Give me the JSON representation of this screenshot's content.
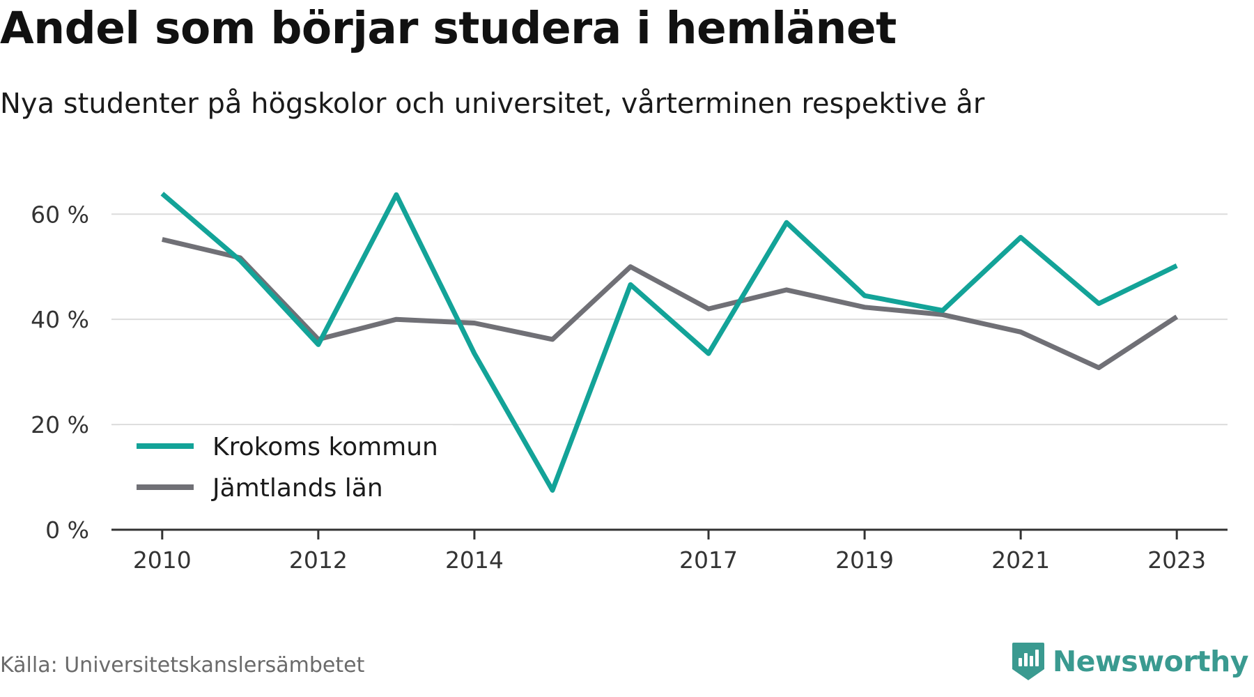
{
  "header": {
    "title": "Andel som börjar studera i hemlänet",
    "subtitle": "Nya studenter på högskolor och universitet, vårterminen respektive år"
  },
  "footer": {
    "source": "Källa: Universitetskanslersämbetet",
    "brand": "Newsworthy",
    "brand_icon": "newsworthy-logo-icon",
    "brand_color": "#3a9a90"
  },
  "chart_data": {
    "type": "line",
    "title": "Andel som börjar studera i hemlänet",
    "subtitle": "Nya studenter på högskolor och universitet, vårterminen respektive år",
    "x": [
      2010,
      2011,
      2012,
      2013,
      2014,
      2015,
      2016,
      2017,
      2018,
      2019,
      2020,
      2021,
      2022,
      2023
    ],
    "x_tick_labels": [
      "2010",
      "2012",
      "2014",
      "2017",
      "2019",
      "2021",
      "2023"
    ],
    "x_tick_values": [
      2010,
      2012,
      2014,
      2017,
      2019,
      2021,
      2023
    ],
    "y_tick_labels": [
      "0 %",
      "20 %",
      "40 %",
      "60 %"
    ],
    "y_tick_values": [
      0,
      20,
      40,
      60
    ],
    "ylim": [
      0,
      66
    ],
    "xlim": [
      2009.35,
      2023.65
    ],
    "grid": true,
    "legend_placement": "bottom-left",
    "series": [
      {
        "name": "Krokoms kommun",
        "color": "#13a398",
        "values": [
          63.9,
          51.2,
          35.2,
          63.7,
          33.5,
          7.5,
          46.6,
          33.5,
          58.4,
          44.5,
          41.7,
          55.6,
          43.0,
          50.2
        ]
      },
      {
        "name": "Jämtlands län",
        "color": "#707076",
        "values": [
          55.2,
          51.7,
          36.2,
          40.0,
          39.3,
          36.2,
          50.0,
          42.0,
          45.6,
          42.3,
          40.9,
          37.6,
          30.8,
          40.5
        ]
      }
    ]
  }
}
